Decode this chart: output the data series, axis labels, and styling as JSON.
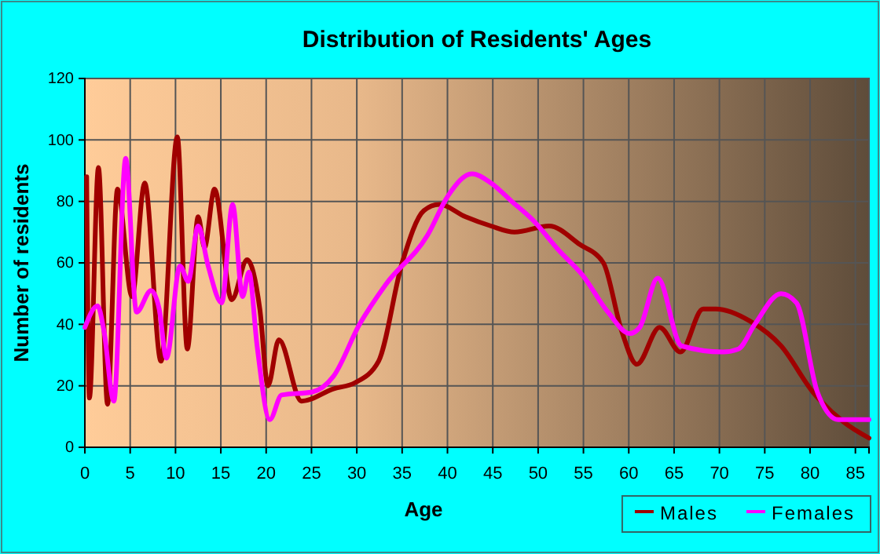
{
  "chart_data": {
    "type": "line",
    "title": "Distribution of Residents' Ages",
    "xlabel": "Age",
    "ylabel": "Number of residents",
    "xlim": [
      0,
      86.5
    ],
    "ylim": [
      0,
      120
    ],
    "xticks": [
      0,
      5,
      10,
      15,
      20,
      25,
      30,
      35,
      40,
      45,
      50,
      55,
      60,
      65,
      70,
      75,
      80,
      85
    ],
    "yticks": [
      0,
      20,
      40,
      60,
      80,
      100,
      120
    ],
    "grid": true,
    "legend": "bottom right",
    "series": [
      {
        "name": "Males",
        "color": "#a00000",
        "x": [
          0.2,
          0.5,
          1.5,
          2.5,
          3.6,
          5.2,
          6.6,
          8.4,
          10.2,
          11.3,
          12.5,
          13.2,
          14.3,
          16.2,
          17.9,
          19.3,
          20.2,
          21.4,
          23.9,
          27.4,
          29.8,
          32.4,
          35,
          37.4,
          39.1,
          42,
          44.8,
          47.4,
          51.2,
          54.6,
          57.2,
          59.2,
          60.9,
          63.4,
          65.7,
          68.2,
          69.6,
          73.4,
          76.8,
          80.3,
          83.8,
          86.5
        ],
        "values": [
          88,
          16,
          91,
          14,
          84,
          49,
          86,
          28,
          101,
          32,
          75,
          65,
          84,
          48,
          61,
          45,
          20,
          35,
          15,
          19,
          21,
          28,
          60,
          77,
          79,
          75,
          72,
          70,
          72,
          66,
          60,
          38,
          27,
          39,
          31,
          45,
          45,
          41,
          33,
          18,
          8,
          3
        ]
      },
      {
        "name": "Females",
        "color": "#ff00ff",
        "x": [
          0,
          1.4,
          2.1,
          3.2,
          4.5,
          5.7,
          7.3,
          8.2,
          9,
          10.5,
          11.4,
          12.5,
          13.6,
          15.1,
          16.3,
          17.4,
          18.1,
          19,
          20.4,
          21.7,
          25.1,
          27.4,
          30.3,
          33.2,
          37.8,
          40.1,
          42.7,
          44.8,
          47.1,
          49.4,
          52.3,
          54.9,
          57.7,
          60.1,
          61.2,
          63.2,
          65.8,
          70.4,
          72.1,
          73.9,
          76.8,
          78.5,
          80.8,
          83.1,
          86.5
        ],
        "values": [
          39,
          46,
          38,
          15,
          94,
          44,
          51,
          45,
          29,
          59,
          54,
          72,
          59,
          47,
          79,
          49,
          57,
          33,
          9,
          17,
          18,
          23,
          40,
          53,
          69,
          82,
          89,
          86,
          80,
          74,
          64,
          56,
          44,
          37,
          39,
          55,
          33,
          31,
          32,
          40,
          50,
          47,
          18,
          9,
          9
        ]
      }
    ]
  }
}
